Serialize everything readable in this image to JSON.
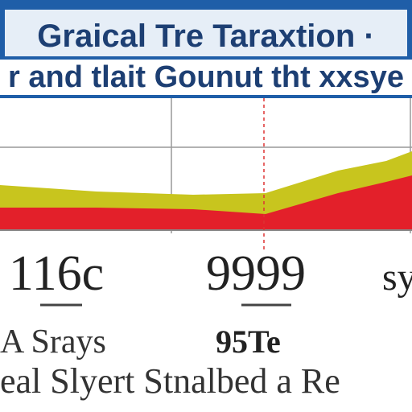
{
  "header": {
    "title": "Graical Tre Taraxtion ·",
    "subtitle": "r and tlait Gounut tht xxsye"
  },
  "labels": {
    "big": [
      "116c",
      "9999",
      "sy"
    ],
    "small": [
      "A Srays",
      "95Te"
    ],
    "footer": "eal Slyert Stnalbed a Re"
  }
}
